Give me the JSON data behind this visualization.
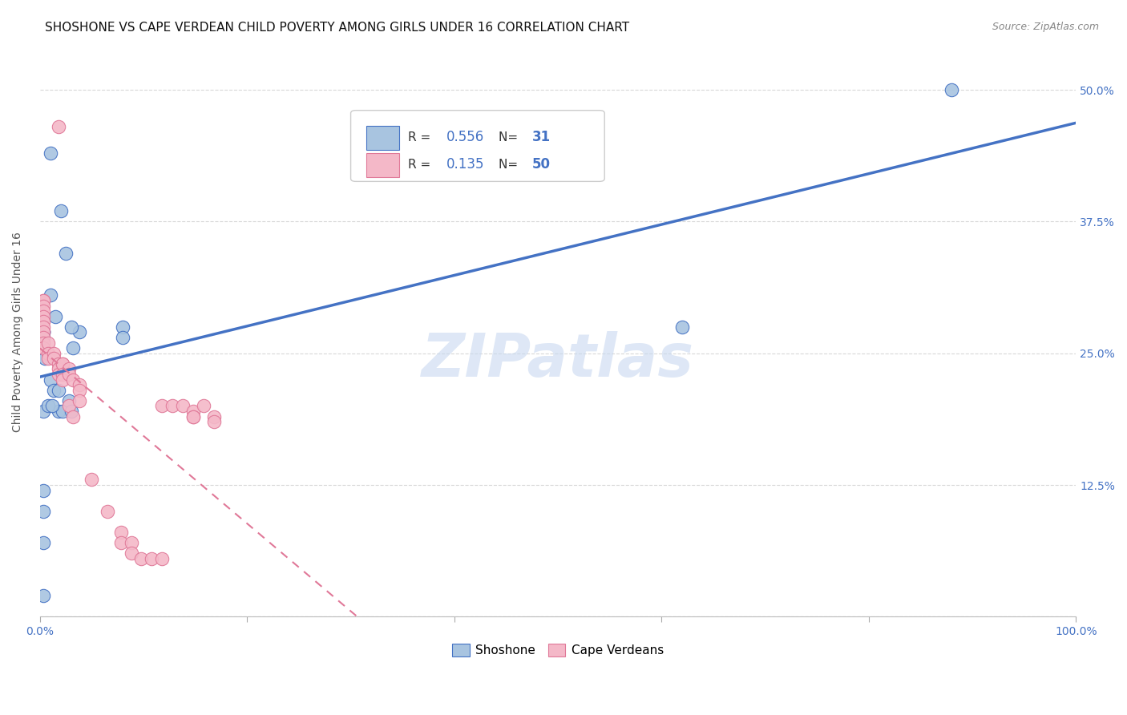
{
  "title": "SHOSHONE VS CAPE VERDEAN CHILD POVERTY AMONG GIRLS UNDER 16 CORRELATION CHART",
  "source": "Source: ZipAtlas.com",
  "ylabel": "Child Poverty Among Girls Under 16",
  "xlim": [
    0,
    1.0
  ],
  "ylim": [
    0,
    0.54
  ],
  "xtick_values": [
    0.0,
    0.2,
    0.4,
    0.6,
    0.8,
    1.0
  ],
  "xtick_labels": [
    "0.0%",
    "",
    "",
    "",
    "",
    "100.0%"
  ],
  "ytick_values": [
    0.0,
    0.125,
    0.25,
    0.375,
    0.5
  ],
  "ytick_labels": [
    "",
    "12.5%",
    "25.0%",
    "37.5%",
    "50.0%"
  ],
  "shoshone_R": 0.556,
  "shoshone_N": 31,
  "cape_verdean_R": 0.135,
  "cape_verdean_N": 50,
  "shoshone_color": "#a8c4e0",
  "cape_verdean_color": "#f4b8c8",
  "shoshone_line_color": "#4472c4",
  "cape_verdean_line_color": "#e07898",
  "shoshone_x": [
    0.01,
    0.02,
    0.025,
    0.01,
    0.015,
    0.003,
    0.003,
    0.003,
    0.003,
    0.005,
    0.01,
    0.013,
    0.018,
    0.018,
    0.022,
    0.028,
    0.003,
    0.008,
    0.012,
    0.038,
    0.08,
    0.08,
    0.03,
    0.03,
    0.032,
    0.62,
    0.88,
    0.003,
    0.003,
    0.003,
    0.003
  ],
  "shoshone_y": [
    0.44,
    0.385,
    0.345,
    0.305,
    0.285,
    0.27,
    0.27,
    0.27,
    0.265,
    0.245,
    0.225,
    0.215,
    0.215,
    0.195,
    0.195,
    0.205,
    0.195,
    0.2,
    0.2,
    0.27,
    0.275,
    0.265,
    0.275,
    0.195,
    0.255,
    0.275,
    0.5,
    0.12,
    0.1,
    0.07,
    0.02
  ],
  "cape_verdean_x": [
    0.018,
    0.003,
    0.003,
    0.003,
    0.003,
    0.003,
    0.003,
    0.003,
    0.003,
    0.003,
    0.003,
    0.003,
    0.008,
    0.008,
    0.008,
    0.013,
    0.013,
    0.018,
    0.018,
    0.018,
    0.022,
    0.022,
    0.022,
    0.022,
    0.028,
    0.028,
    0.028,
    0.032,
    0.032,
    0.038,
    0.038,
    0.038,
    0.05,
    0.065,
    0.078,
    0.078,
    0.088,
    0.088,
    0.098,
    0.108,
    0.118,
    0.118,
    0.128,
    0.138,
    0.148,
    0.148,
    0.148,
    0.158,
    0.168,
    0.168
  ],
  "cape_verdean_y": [
    0.465,
    0.3,
    0.3,
    0.295,
    0.29,
    0.285,
    0.28,
    0.275,
    0.27,
    0.265,
    0.26,
    0.255,
    0.26,
    0.25,
    0.245,
    0.25,
    0.245,
    0.24,
    0.235,
    0.23,
    0.24,
    0.24,
    0.23,
    0.225,
    0.235,
    0.23,
    0.2,
    0.225,
    0.19,
    0.22,
    0.215,
    0.205,
    0.13,
    0.1,
    0.08,
    0.07,
    0.07,
    0.06,
    0.055,
    0.055,
    0.055,
    0.2,
    0.2,
    0.2,
    0.195,
    0.19,
    0.19,
    0.2,
    0.19,
    0.185
  ],
  "title_fontsize": 11,
  "axis_label_fontsize": 10,
  "tick_fontsize": 10,
  "watermark_text": "ZIPatlas",
  "watermark_color": "#c8d8f0",
  "background_color": "#ffffff",
  "grid_color": "#d8d8d8"
}
